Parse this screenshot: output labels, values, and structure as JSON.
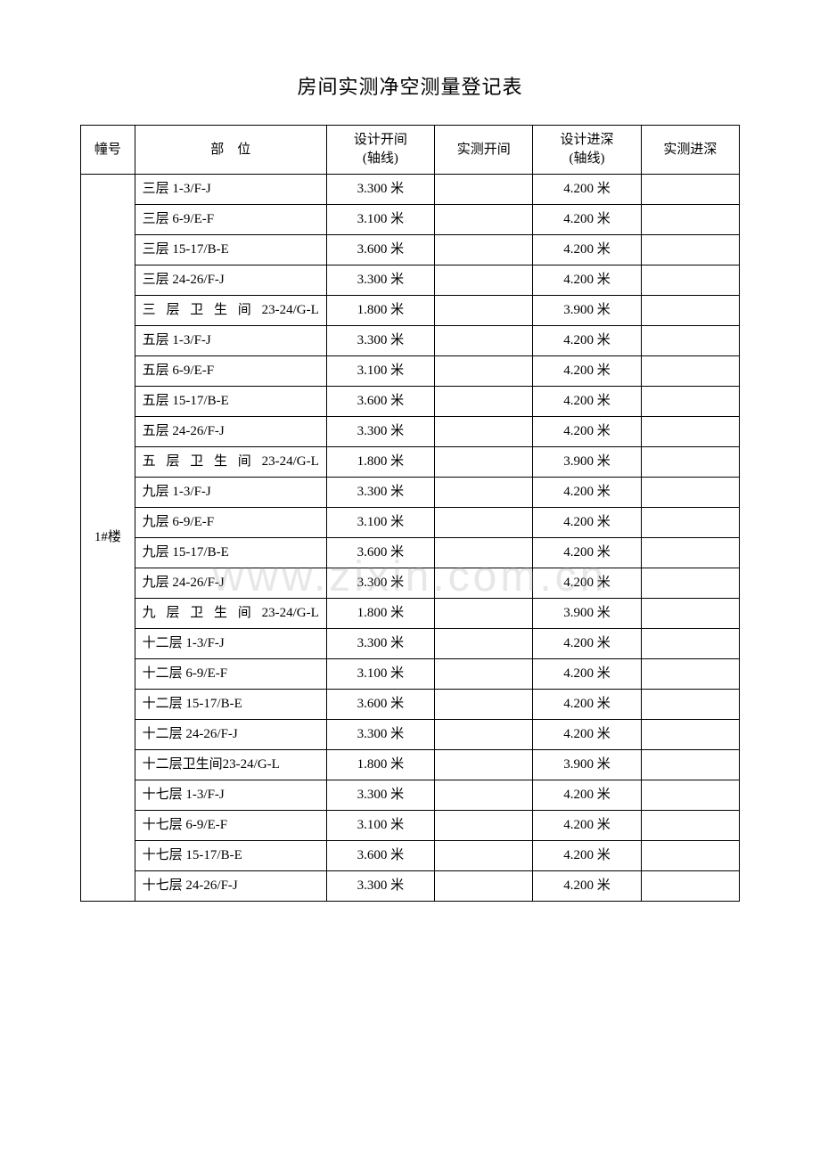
{
  "title": "房间实测净空测量登记表",
  "watermark": "www.zixin.com.cn",
  "columns": {
    "building": "幢号",
    "location": "部　位",
    "design_width_l1": "设计开间",
    "design_width_l2": "(轴线)",
    "measured_width": "实测开间",
    "design_depth_l1": "设计进深",
    "design_depth_l2": "(轴线)",
    "measured_depth": "实测进深"
  },
  "building_label": "1#楼",
  "rows": [
    {
      "location": "三层 1-3/F-J",
      "dw": "3.300 米",
      "dd": "4.200 米",
      "expand": false
    },
    {
      "location": "三层 6-9/E-F",
      "dw": "3.100 米",
      "dd": "4.200 米",
      "expand": false
    },
    {
      "location": "三层 15-17/B-E",
      "dw": "3.600 米",
      "dd": "4.200 米",
      "expand": false
    },
    {
      "location": "三层 24-26/F-J",
      "dw": "3.300 米",
      "dd": "4.200 米",
      "expand": false
    },
    {
      "location": "三 层 卫 生 间 23-24/G-L",
      "dw": "1.800 米",
      "dd": "3.900 米",
      "expand": true
    },
    {
      "location": "五层 1-3/F-J",
      "dw": "3.300 米",
      "dd": "4.200 米",
      "expand": false
    },
    {
      "location": "五层 6-9/E-F",
      "dw": "3.100 米",
      "dd": "4.200 米",
      "expand": false
    },
    {
      "location": "五层 15-17/B-E",
      "dw": "3.600 米",
      "dd": "4.200 米",
      "expand": false
    },
    {
      "location": "五层 24-26/F-J",
      "dw": "3.300 米",
      "dd": "4.200 米",
      "expand": false
    },
    {
      "location": "五 层 卫 生 间 23-24/G-L",
      "dw": "1.800 米",
      "dd": "3.900 米",
      "expand": true
    },
    {
      "location": "九层 1-3/F-J",
      "dw": "3.300 米",
      "dd": "4.200 米",
      "expand": false
    },
    {
      "location": "九层 6-9/E-F",
      "dw": "3.100 米",
      "dd": "4.200 米",
      "expand": false
    },
    {
      "location": "九层 15-17/B-E",
      "dw": "3.600 米",
      "dd": "4.200 米",
      "expand": false
    },
    {
      "location": "九层 24-26/F-J",
      "dw": "3.300 米",
      "dd": "4.200 米",
      "expand": false
    },
    {
      "location": "九 层 卫 生 间 23-24/G-L",
      "dw": "1.800 米",
      "dd": "3.900 米",
      "expand": true
    },
    {
      "location": "十二层 1-3/F-J",
      "dw": "3.300 米",
      "dd": "4.200 米",
      "expand": false
    },
    {
      "location": "十二层 6-9/E-F",
      "dw": "3.100 米",
      "dd": "4.200 米",
      "expand": false
    },
    {
      "location": "十二层 15-17/B-E",
      "dw": "3.600 米",
      "dd": "4.200 米",
      "expand": false
    },
    {
      "location": "十二层 24-26/F-J",
      "dw": "3.300 米",
      "dd": "4.200 米",
      "expand": false
    },
    {
      "location": "十二层卫生间23-24/G-L",
      "dw": "1.800 米",
      "dd": "3.900 米",
      "expand": false
    },
    {
      "location": "十七层 1-3/F-J",
      "dw": "3.300 米",
      "dd": "4.200 米",
      "expand": false
    },
    {
      "location": "十七层 6-9/E-F",
      "dw": "3.100 米",
      "dd": "4.200 米",
      "expand": false
    },
    {
      "location": "十七层 15-17/B-E",
      "dw": "3.600 米",
      "dd": "4.200 米",
      "expand": false
    },
    {
      "location": "十七层 24-26/F-J",
      "dw": "3.300 米",
      "dd": "4.200 米",
      "expand": false
    }
  ]
}
